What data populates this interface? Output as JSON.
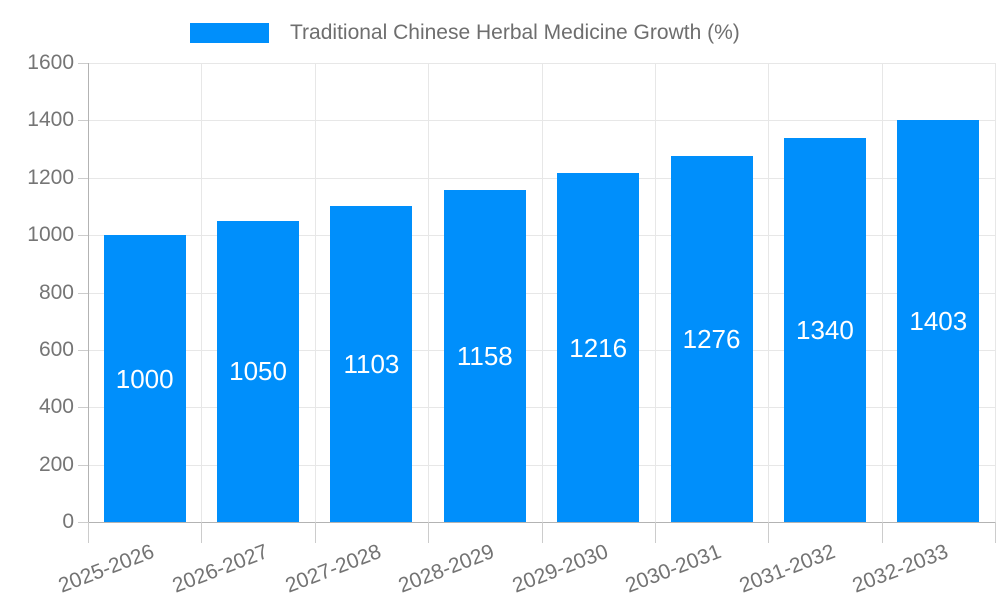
{
  "chart_data": {
    "type": "bar",
    "title": "Traditional Chinese Herbal Medicine Growth (%)",
    "categories": [
      "2025-2026",
      "2026-2027",
      "2027-2028",
      "2028-2029",
      "2029-2030",
      "2030-2031",
      "2031-2032",
      "2032-2033"
    ],
    "series": [
      {
        "name": "Traditional Chinese Herbal Medicine Growth (%)",
        "values": [
          1000,
          1050,
          1103,
          1158,
          1216,
          1276,
          1340,
          1403
        ]
      }
    ],
    "bar_value_labels": [
      "1000",
      "1050",
      "1103",
      "1158",
      "1216",
      "1276",
      "1340",
      "1403"
    ],
    "xlabel": "",
    "ylabel": "",
    "ylim": [
      0,
      1600
    ],
    "yticks": [
      0,
      200,
      400,
      600,
      800,
      1000,
      1200,
      1400,
      1600
    ],
    "grid": true,
    "legend_position": "top",
    "colors": {
      "bar": "#008FFB",
      "grid_line": "#e7e7e7",
      "axis_line": "#b3b3b3",
      "tick_line": "#cccccc",
      "axis_label": "#757575",
      "x_axis_label": "#737373",
      "legend_text": "#6e6e6e",
      "bar_value_text": "#ffffff"
    }
  }
}
